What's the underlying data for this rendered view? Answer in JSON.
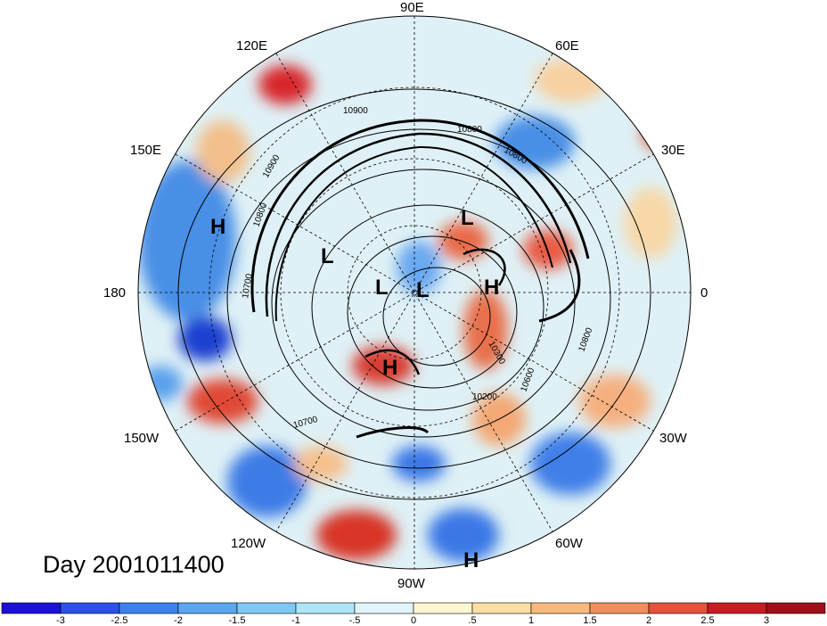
{
  "title": "Day 2001011400",
  "longitude_labels": [
    {
      "text": "90E"
    },
    {
      "text": "60E"
    },
    {
      "text": "30E"
    },
    {
      "text": "0"
    },
    {
      "text": "30W"
    },
    {
      "text": "60W"
    },
    {
      "text": "90W"
    },
    {
      "text": "120W"
    },
    {
      "text": "150W"
    },
    {
      "text": "180"
    },
    {
      "text": "150E"
    },
    {
      "text": "120E"
    }
  ],
  "pressure_centers": [
    "H",
    "L",
    "L",
    "L",
    "L",
    "H",
    "H",
    "H"
  ],
  "contour_labels": [
    "10900",
    "10800",
    "10900",
    "10800",
    "10700",
    "10800",
    "10300",
    "10600",
    "10800",
    "10200",
    "10700"
  ],
  "colorbar": {
    "ticks": [
      "-3",
      "-2.5",
      "-2",
      "-1.5",
      "-1",
      "-.5",
      "0",
      ".5",
      "1",
      "1.5",
      "2",
      "2.5",
      "3"
    ],
    "colors": [
      "#1c10d8",
      "#2a52e8",
      "#3c82ec",
      "#5aa6f0",
      "#7ec8f4",
      "#aee6f8",
      "#e0f6fa",
      "#fdf6d2",
      "#fadea6",
      "#f6ba7c",
      "#f08e5c",
      "#e4523c",
      "#c81c22",
      "#a01018"
    ]
  }
}
